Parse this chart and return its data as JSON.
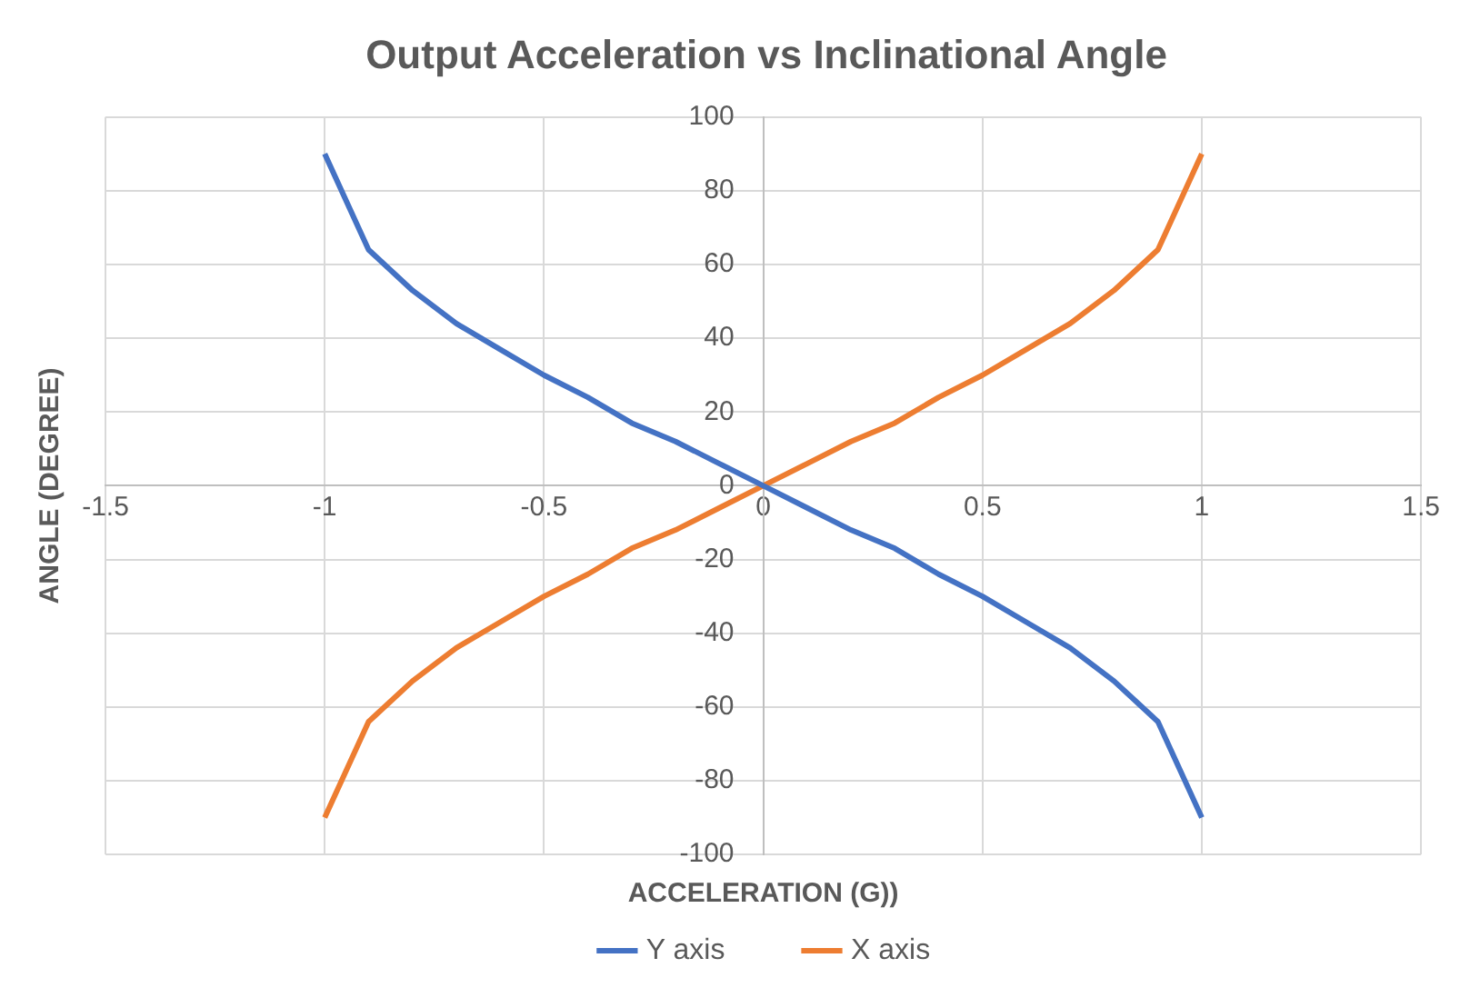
{
  "chart_data": {
    "type": "line",
    "title": "Output Acceleration vs Inclinational Angle",
    "xlabel": "ACCELERATION (G))",
    "ylabel": "ANGLE (DEGREE)",
    "x": [
      -1,
      -0.9,
      -0.8,
      -0.7,
      -0.6,
      -0.5,
      -0.4,
      -0.3,
      -0.2,
      -0.1,
      0,
      0.1,
      0.2,
      0.3,
      0.4,
      0.5,
      0.6,
      0.7,
      0.8,
      0.9,
      1
    ],
    "series": [
      {
        "name": "Y axis",
        "color": "#4472c4",
        "values": [
          90,
          64,
          53,
          44,
          37,
          30,
          24,
          17,
          12,
          6,
          0,
          -6,
          -12,
          -17,
          -24,
          -30,
          -37,
          -44,
          -53,
          -64,
          -90
        ]
      },
      {
        "name": "X axis",
        "color": "#ed7d31",
        "values": [
          -90,
          -64,
          -53,
          -44,
          -37,
          -30,
          -24,
          -17,
          -12,
          -6,
          0,
          6,
          12,
          17,
          24,
          30,
          37,
          44,
          53,
          64,
          90
        ]
      }
    ],
    "xlim": [
      -1.5,
      1.5
    ],
    "xticks": [
      -1.5,
      -1,
      -0.5,
      0,
      0.5,
      1,
      1.5
    ],
    "ylim": [
      -100,
      100
    ],
    "yticks": [
      -100,
      -80,
      -60,
      -40,
      -20,
      0,
      20,
      40,
      60,
      80,
      100
    ],
    "grid": true,
    "legend": "bottom",
    "marker": "none",
    "line_style": "solid"
  }
}
